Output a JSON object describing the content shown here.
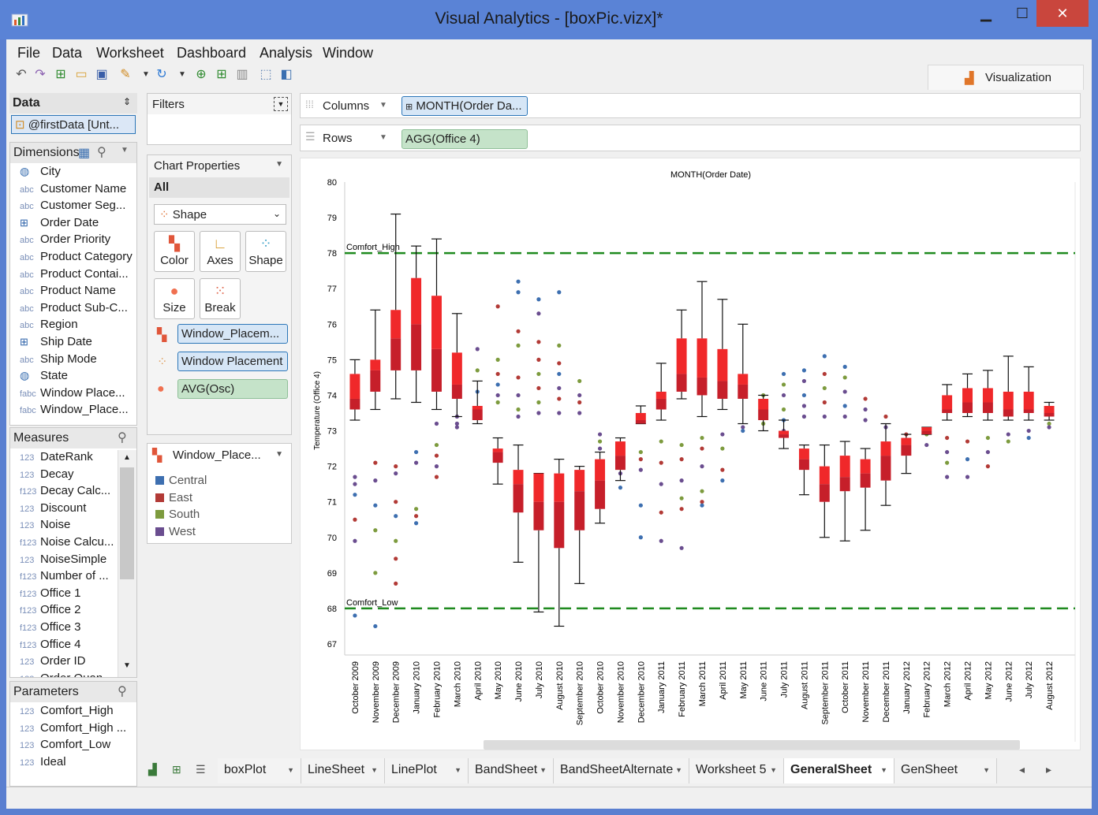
{
  "window": {
    "title": "Visual Analytics - [boxPic.vizx]*",
    "min": "▁",
    "max": "☐",
    "close": "✕"
  },
  "menu": [
    "File",
    "Data",
    "Worksheet",
    "Dashboard",
    "Analysis",
    "Window"
  ],
  "viz_tab": "Visualization",
  "data_panel": {
    "title": "Data",
    "source": "@firstData [Unt..."
  },
  "dimensions": {
    "title": "Dimensions",
    "items": [
      {
        "icon": "globe",
        "label": "City"
      },
      {
        "icon": "abc",
        "label": "Customer Name"
      },
      {
        "icon": "abc",
        "label": "Customer Seg..."
      },
      {
        "icon": "date",
        "label": "Order Date"
      },
      {
        "icon": "abc",
        "label": "Order Priority"
      },
      {
        "icon": "abc",
        "label": "Product Category"
      },
      {
        "icon": "abc",
        "label": "Product Contai..."
      },
      {
        "icon": "abc",
        "label": "Product Name"
      },
      {
        "icon": "abc",
        "label": "Product Sub-C..."
      },
      {
        "icon": "abc",
        "label": "Region"
      },
      {
        "icon": "date",
        "label": "Ship Date"
      },
      {
        "icon": "abc",
        "label": "Ship Mode"
      },
      {
        "icon": "globe",
        "label": "State"
      },
      {
        "icon": "fabc",
        "label": "Window Place..."
      },
      {
        "icon": "fabc",
        "label": "Window_Place..."
      }
    ]
  },
  "measures": {
    "title": "Measures",
    "items": [
      {
        "icon": "123",
        "label": "DateRank"
      },
      {
        "icon": "123",
        "label": "Decay"
      },
      {
        "icon": "f123",
        "label": "Decay Calc..."
      },
      {
        "icon": "123",
        "label": "Discount"
      },
      {
        "icon": "123",
        "label": "Noise"
      },
      {
        "icon": "f123",
        "label": "Noise Calcu..."
      },
      {
        "icon": "123",
        "label": "NoiseSimple"
      },
      {
        "icon": "f123",
        "label": "Number of ..."
      },
      {
        "icon": "f123",
        "label": "Office 1"
      },
      {
        "icon": "f123",
        "label": "Office 2"
      },
      {
        "icon": "f123",
        "label": "Office 3"
      },
      {
        "icon": "f123",
        "label": "Office 4"
      },
      {
        "icon": "123",
        "label": "Order ID"
      },
      {
        "icon": "123",
        "label": "Order Quan..."
      }
    ]
  },
  "parameters": {
    "title": "Parameters",
    "items": [
      {
        "icon": "123",
        "label": "Comfort_High"
      },
      {
        "icon": "123",
        "label": "Comfort_High ..."
      },
      {
        "icon": "123",
        "label": "Comfort_Low"
      },
      {
        "icon": "123",
        "label": "Ideal"
      }
    ]
  },
  "filters": {
    "title": "Filters"
  },
  "chart_props": {
    "title": "Chart Properties",
    "all": "All",
    "mark_type": "Shape",
    "buttons": [
      "Color",
      "Axes",
      "Shape",
      "Size",
      "Break"
    ],
    "encodings": [
      "Window_Placem...",
      "Window Placement",
      "AVG(Osc)"
    ]
  },
  "legend": {
    "title": "Window_Place...",
    "items": [
      {
        "label": "Central",
        "color": "#3d6fb0"
      },
      {
        "label": "East",
        "color": "#b23a36"
      },
      {
        "label": "South",
        "color": "#7d9b3e"
      },
      {
        "label": "West",
        "color": "#6a4d8f"
      }
    ]
  },
  "shelves": {
    "columns_label": "Columns",
    "columns_pill": "MONTH(Order Da...",
    "rows_label": "Rows",
    "rows_pill": "AGG(Office 4)"
  },
  "sheet_tabs": [
    "boxPlot",
    "LineSheet",
    "LinePlot",
    "BandSheet",
    "BandSheetAlternate",
    "Worksheet 5",
    "GeneralSheet",
    "GenSheet"
  ],
  "active_sheet": "GeneralSheet",
  "chart_data": {
    "type": "box",
    "title": "MONTH(Order Date)",
    "ylabel": "Temperature (Office 4)",
    "ylim": [
      67,
      80
    ],
    "yticks": [
      67,
      68,
      69,
      70,
      71,
      72,
      73,
      74,
      75,
      76,
      77,
      78,
      79,
      80
    ],
    "reference_lines": [
      {
        "label": "Comfort_High",
        "value": 78
      },
      {
        "label": "Comfort_Low",
        "value": 68
      }
    ],
    "categories": [
      "October 2009",
      "November 2009",
      "December 2009",
      "January 2010",
      "February 2010",
      "March 2010",
      "April 2010",
      "May 2010",
      "June 2010",
      "July 2010",
      "August 2010",
      "September 2010",
      "October 2010",
      "November 2010",
      "December 2010",
      "January 2011",
      "February 2011",
      "March 2011",
      "April 2011",
      "May 2011",
      "June 2011",
      "July 2011",
      "August 2011",
      "September 2011",
      "October 2011",
      "November 2011",
      "December 2011",
      "January 2012",
      "February 2012",
      "March 2012",
      "April 2012",
      "May 2012",
      "June 2012",
      "July 2012",
      "August 2012"
    ],
    "boxes": [
      {
        "min": 73.3,
        "q1": 73.6,
        "median": 73.9,
        "q3": 74.6,
        "max": 75.0
      },
      {
        "min": 73.6,
        "q1": 74.1,
        "median": 74.7,
        "q3": 75.0,
        "max": 76.4
      },
      {
        "min": 73.9,
        "q1": 74.7,
        "median": 75.6,
        "q3": 76.4,
        "max": 79.1
      },
      {
        "min": 73.8,
        "q1": 74.7,
        "median": 76.0,
        "q3": 77.3,
        "max": 78.2
      },
      {
        "min": 73.6,
        "q1": 74.1,
        "median": 75.3,
        "q3": 76.8,
        "max": 78.4
      },
      {
        "min": 73.4,
        "q1": 73.9,
        "median": 74.3,
        "q3": 75.2,
        "max": 76.3
      },
      {
        "min": 73.2,
        "q1": 73.3,
        "median": 73.6,
        "q3": 73.7,
        "max": 74.4
      },
      {
        "min": 71.5,
        "q1": 72.1,
        "median": 72.4,
        "q3": 72.5,
        "max": 72.8
      },
      {
        "min": 69.3,
        "q1": 70.7,
        "median": 71.5,
        "q3": 71.9,
        "max": 72.6
      },
      {
        "min": 67.9,
        "q1": 70.2,
        "median": 71.0,
        "q3": 71.8,
        "max": 71.8
      },
      {
        "min": 67.5,
        "q1": 69.7,
        "median": 71.0,
        "q3": 71.8,
        "max": 72.2
      },
      {
        "min": 68.7,
        "q1": 70.2,
        "median": 71.3,
        "q3": 71.9,
        "max": 72.0
      },
      {
        "min": 70.4,
        "q1": 70.8,
        "median": 71.6,
        "q3": 72.2,
        "max": 72.4
      },
      {
        "min": 71.6,
        "q1": 71.9,
        "median": 72.3,
        "q3": 72.7,
        "max": 72.8
      },
      {
        "min": 73.2,
        "q1": 73.2,
        "median": 73.3,
        "q3": 73.5,
        "max": 73.7
      },
      {
        "min": 73.3,
        "q1": 73.6,
        "median": 73.9,
        "q3": 74.1,
        "max": 74.9
      },
      {
        "min": 73.9,
        "q1": 74.1,
        "median": 74.6,
        "q3": 75.6,
        "max": 76.4
      },
      {
        "min": 73.4,
        "q1": 74.0,
        "median": 74.5,
        "q3": 75.6,
        "max": 77.2
      },
      {
        "min": 73.6,
        "q1": 73.9,
        "median": 74.4,
        "q3": 75.3,
        "max": 76.7
      },
      {
        "min": 73.2,
        "q1": 73.9,
        "median": 74.3,
        "q3": 74.6,
        "max": 76.0
      },
      {
        "min": 73.0,
        "q1": 73.3,
        "median": 73.6,
        "q3": 73.9,
        "max": 74.0
      },
      {
        "min": 72.5,
        "q1": 72.8,
        "median": 72.9,
        "q3": 73.0,
        "max": 73.3
      },
      {
        "min": 71.2,
        "q1": 71.9,
        "median": 72.2,
        "q3": 72.5,
        "max": 72.6
      },
      {
        "min": 70.0,
        "q1": 71.0,
        "median": 71.5,
        "q3": 72.0,
        "max": 72.6
      },
      {
        "min": 69.9,
        "q1": 71.3,
        "median": 71.7,
        "q3": 72.3,
        "max": 72.7
      },
      {
        "min": 70.2,
        "q1": 71.4,
        "median": 71.8,
        "q3": 72.2,
        "max": 72.5
      },
      {
        "min": 70.9,
        "q1": 71.6,
        "median": 72.3,
        "q3": 72.7,
        "max": 73.2
      },
      {
        "min": 71.8,
        "q1": 72.3,
        "median": 72.6,
        "q3": 72.8,
        "max": 72.9
      },
      {
        "min": 72.9,
        "q1": 72.9,
        "median": 73.0,
        "q3": 73.1,
        "max": 73.1
      },
      {
        "min": 73.3,
        "q1": 73.5,
        "median": 73.6,
        "q3": 74.0,
        "max": 74.3
      },
      {
        "min": 73.4,
        "q1": 73.5,
        "median": 73.8,
        "q3": 74.2,
        "max": 74.6
      },
      {
        "min": 73.3,
        "q1": 73.5,
        "median": 73.8,
        "q3": 74.2,
        "max": 74.7
      },
      {
        "min": 73.3,
        "q1": 73.4,
        "median": 73.6,
        "q3": 74.1,
        "max": 75.1
      },
      {
        "min": 73.3,
        "q1": 73.5,
        "median": 73.6,
        "q3": 74.1,
        "max": 74.8
      },
      {
        "min": 73.3,
        "q1": 73.4,
        "median": 73.5,
        "q3": 73.7,
        "max": 73.8
      }
    ],
    "outliers": [
      [
        0,
        71.7,
        "West"
      ],
      [
        0,
        71.5,
        "West"
      ],
      [
        0,
        71.2,
        "Central"
      ],
      [
        0,
        70.5,
        "East"
      ],
      [
        0,
        69.9,
        "West"
      ],
      [
        0,
        67.8,
        "Central"
      ],
      [
        1,
        72.1,
        "East"
      ],
      [
        1,
        71.6,
        "West"
      ],
      [
        1,
        70.9,
        "Central"
      ],
      [
        1,
        70.2,
        "South"
      ],
      [
        1,
        69.0,
        "South"
      ],
      [
        1,
        67.5,
        "Central"
      ],
      [
        2,
        72.0,
        "East"
      ],
      [
        2,
        71.8,
        "West"
      ],
      [
        2,
        71.0,
        "East"
      ],
      [
        2,
        70.6,
        "Central"
      ],
      [
        2,
        69.9,
        "South"
      ],
      [
        2,
        69.4,
        "East"
      ],
      [
        2,
        68.7,
        "East"
      ],
      [
        3,
        72.4,
        "Central"
      ],
      [
        3,
        72.1,
        "West"
      ],
      [
        3,
        70.8,
        "South"
      ],
      [
        3,
        70.6,
        "East"
      ],
      [
        3,
        70.4,
        "Central"
      ],
      [
        4,
        73.2,
        "West"
      ],
      [
        4,
        72.6,
        "South"
      ],
      [
        4,
        72.3,
        "East"
      ],
      [
        4,
        72.0,
        "West"
      ],
      [
        4,
        71.7,
        "East"
      ],
      [
        5,
        73.4,
        "West"
      ],
      [
        5,
        73.2,
        "West"
      ],
      [
        5,
        73.1,
        "West"
      ],
      [
        6,
        75.3,
        "West"
      ],
      [
        6,
        74.7,
        "South"
      ],
      [
        6,
        74.1,
        "Central"
      ],
      [
        7,
        76.5,
        "East"
      ],
      [
        7,
        75.0,
        "South"
      ],
      [
        7,
        74.6,
        "East"
      ],
      [
        7,
        74.3,
        "Central"
      ],
      [
        7,
        74.0,
        "West"
      ],
      [
        7,
        73.8,
        "South"
      ],
      [
        8,
        77.2,
        "Central"
      ],
      [
        8,
        76.9,
        "Central"
      ],
      [
        8,
        75.8,
        "East"
      ],
      [
        8,
        75.4,
        "South"
      ],
      [
        8,
        74.5,
        "East"
      ],
      [
        8,
        74.0,
        "West"
      ],
      [
        8,
        73.6,
        "South"
      ],
      [
        8,
        73.4,
        "West"
      ],
      [
        9,
        76.7,
        "Central"
      ],
      [
        9,
        76.3,
        "West"
      ],
      [
        9,
        75.5,
        "East"
      ],
      [
        9,
        75.0,
        "East"
      ],
      [
        9,
        74.6,
        "South"
      ],
      [
        9,
        74.2,
        "East"
      ],
      [
        9,
        73.8,
        "South"
      ],
      [
        9,
        73.5,
        "West"
      ],
      [
        10,
        76.9,
        "Central"
      ],
      [
        10,
        75.4,
        "South"
      ],
      [
        10,
        74.9,
        "East"
      ],
      [
        10,
        74.6,
        "Central"
      ],
      [
        10,
        74.2,
        "West"
      ],
      [
        10,
        73.9,
        "East"
      ],
      [
        10,
        73.5,
        "West"
      ],
      [
        11,
        74.4,
        "South"
      ],
      [
        11,
        74.0,
        "West"
      ],
      [
        11,
        73.8,
        "East"
      ],
      [
        11,
        73.5,
        "West"
      ],
      [
        12,
        72.9,
        "West"
      ],
      [
        12,
        72.7,
        "South"
      ],
      [
        12,
        72.5,
        "West"
      ],
      [
        13,
        71.4,
        "Central"
      ],
      [
        13,
        71.8,
        "West"
      ],
      [
        14,
        72.4,
        "South"
      ],
      [
        14,
        72.2,
        "East"
      ],
      [
        14,
        71.9,
        "West"
      ],
      [
        14,
        70.9,
        "Central"
      ],
      [
        14,
        70.0,
        "Central"
      ],
      [
        15,
        72.7,
        "South"
      ],
      [
        15,
        72.1,
        "East"
      ],
      [
        15,
        71.5,
        "West"
      ],
      [
        15,
        70.7,
        "East"
      ],
      [
        15,
        69.9,
        "West"
      ],
      [
        16,
        72.6,
        "South"
      ],
      [
        16,
        72.2,
        "East"
      ],
      [
        16,
        71.6,
        "West"
      ],
      [
        16,
        71.1,
        "South"
      ],
      [
        16,
        70.8,
        "East"
      ],
      [
        16,
        69.7,
        "West"
      ],
      [
        17,
        72.8,
        "South"
      ],
      [
        17,
        72.5,
        "East"
      ],
      [
        17,
        72.0,
        "West"
      ],
      [
        17,
        71.3,
        "South"
      ],
      [
        17,
        71.0,
        "East"
      ],
      [
        17,
        70.9,
        "Central"
      ],
      [
        18,
        72.9,
        "West"
      ],
      [
        18,
        72.5,
        "South"
      ],
      [
        18,
        71.9,
        "East"
      ],
      [
        18,
        71.6,
        "Central"
      ],
      [
        19,
        73.1,
        "West"
      ],
      [
        19,
        73.0,
        "Central"
      ],
      [
        20,
        74.0,
        "South"
      ],
      [
        20,
        73.5,
        "West"
      ],
      [
        20,
        73.2,
        "South"
      ],
      [
        21,
        74.6,
        "Central"
      ],
      [
        21,
        74.3,
        "South"
      ],
      [
        21,
        74.0,
        "West"
      ],
      [
        21,
        73.6,
        "South"
      ],
      [
        21,
        73.3,
        "Central"
      ],
      [
        21,
        73.0,
        "West"
      ],
      [
        22,
        74.7,
        "Central"
      ],
      [
        22,
        74.4,
        "West"
      ],
      [
        22,
        74.0,
        "Central"
      ],
      [
        22,
        73.7,
        "West"
      ],
      [
        22,
        73.4,
        "West"
      ],
      [
        23,
        75.1,
        "Central"
      ],
      [
        23,
        74.6,
        "East"
      ],
      [
        23,
        74.2,
        "South"
      ],
      [
        23,
        73.8,
        "East"
      ],
      [
        23,
        73.4,
        "West"
      ],
      [
        24,
        74.8,
        "Central"
      ],
      [
        24,
        74.5,
        "South"
      ],
      [
        24,
        74.1,
        "West"
      ],
      [
        24,
        73.7,
        "Central"
      ],
      [
        24,
        73.4,
        "West"
      ],
      [
        25,
        73.9,
        "East"
      ],
      [
        25,
        73.6,
        "West"
      ],
      [
        25,
        73.3,
        "West"
      ],
      [
        26,
        73.4,
        "East"
      ],
      [
        26,
        73.1,
        "West"
      ],
      [
        27,
        72.9,
        "East"
      ],
      [
        27,
        72.7,
        "West"
      ],
      [
        28,
        72.9,
        "South"
      ],
      [
        28,
        72.6,
        "West"
      ],
      [
        29,
        72.8,
        "East"
      ],
      [
        29,
        72.4,
        "West"
      ],
      [
        29,
        72.1,
        "South"
      ],
      [
        29,
        71.7,
        "West"
      ],
      [
        30,
        72.7,
        "East"
      ],
      [
        30,
        72.2,
        "Central"
      ],
      [
        30,
        71.7,
        "West"
      ],
      [
        31,
        72.8,
        "South"
      ],
      [
        31,
        72.4,
        "West"
      ],
      [
        31,
        72.0,
        "East"
      ],
      [
        32,
        72.9,
        "West"
      ],
      [
        32,
        72.7,
        "South"
      ],
      [
        33,
        73.0,
        "West"
      ],
      [
        33,
        72.8,
        "Central"
      ],
      [
        34,
        73.2,
        "South"
      ],
      [
        34,
        73.1,
        "West"
      ]
    ]
  }
}
